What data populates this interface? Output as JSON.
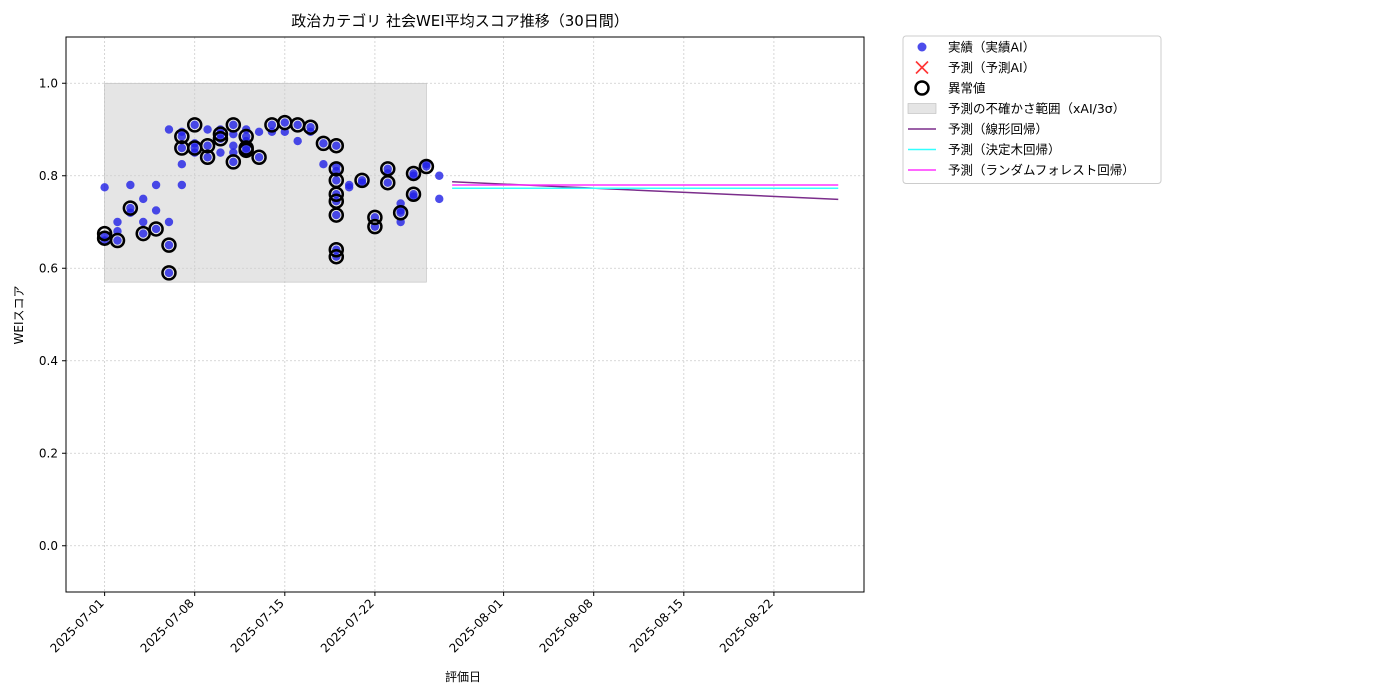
{
  "chart_data": {
    "type": "scatter",
    "title": "政治カテゴリ 社会WEI平均スコア推移（30日間）",
    "xlabel": "評価日",
    "ylabel": "WEIスコア",
    "xlim": [
      "2025-06-28",
      "2025-08-29"
    ],
    "ylim": [
      -0.1,
      1.1
    ],
    "y_ticks": [
      0.0,
      0.2,
      0.4,
      0.6,
      0.8,
      1.0
    ],
    "y_tick_labels": [
      "0.0",
      "0.2",
      "0.4",
      "0.6",
      "0.8",
      "1.0"
    ],
    "x_ticks": [
      "2025-07-01",
      "2025-07-08",
      "2025-07-15",
      "2025-07-22",
      "2025-08-01",
      "2025-08-08",
      "2025-08-15",
      "2025-08-22"
    ],
    "grid": true,
    "legend_position": "outside-right",
    "uncertainty_band": {
      "name": "予測の不確かさ範囲（xAI/3σ）",
      "x_start": "2025-07-01",
      "x_end": "2025-07-26",
      "y_low": 0.57,
      "y_high": 1.0,
      "color": "#cccccc"
    },
    "series": [
      {
        "name": "実績（実績AI）",
        "kind": "scatter",
        "color": "#1f1fe6",
        "points": [
          [
            "2025-07-01",
            0.775
          ],
          [
            "2025-07-01",
            0.66
          ],
          [
            "2025-07-01",
            0.67
          ],
          [
            "2025-07-02",
            0.7
          ],
          [
            "2025-07-02",
            0.66
          ],
          [
            "2025-07-02",
            0.68
          ],
          [
            "2025-07-03",
            0.73
          ],
          [
            "2025-07-03",
            0.78
          ],
          [
            "2025-07-03",
            0.72
          ],
          [
            "2025-07-04",
            0.75
          ],
          [
            "2025-07-04",
            0.7
          ],
          [
            "2025-07-04",
            0.675
          ],
          [
            "2025-07-05",
            0.78
          ],
          [
            "2025-07-05",
            0.725
          ],
          [
            "2025-07-05",
            0.685
          ],
          [
            "2025-07-06",
            0.65
          ],
          [
            "2025-07-06",
            0.59
          ],
          [
            "2025-07-06",
            0.7
          ],
          [
            "2025-07-06",
            0.9
          ],
          [
            "2025-07-07",
            0.78
          ],
          [
            "2025-07-07",
            0.86
          ],
          [
            "2025-07-07",
            0.895
          ],
          [
            "2025-07-07",
            0.885
          ],
          [
            "2025-07-07",
            0.825
          ],
          [
            "2025-07-08",
            0.91
          ],
          [
            "2025-07-08",
            0.86
          ],
          [
            "2025-07-08",
            0.85
          ],
          [
            "2025-07-08",
            0.87
          ],
          [
            "2025-07-09",
            0.9
          ],
          [
            "2025-07-09",
            0.84
          ],
          [
            "2025-07-09",
            0.865
          ],
          [
            "2025-07-10",
            0.9
          ],
          [
            "2025-07-10",
            0.89
          ],
          [
            "2025-07-10",
            0.88
          ],
          [
            "2025-07-10",
            0.85
          ],
          [
            "2025-07-11",
            0.91
          ],
          [
            "2025-07-11",
            0.89
          ],
          [
            "2025-07-11",
            0.83
          ],
          [
            "2025-07-11",
            0.85
          ],
          [
            "2025-07-11",
            0.865
          ],
          [
            "2025-07-12",
            0.875
          ],
          [
            "2025-07-12",
            0.86
          ],
          [
            "2025-07-12",
            0.885
          ],
          [
            "2025-07-12",
            0.9
          ],
          [
            "2025-07-12",
            0.855
          ],
          [
            "2025-07-13",
            0.84
          ],
          [
            "2025-07-13",
            0.895
          ],
          [
            "2025-07-14",
            0.91
          ],
          [
            "2025-07-14",
            0.895
          ],
          [
            "2025-07-15",
            0.915
          ],
          [
            "2025-07-15",
            0.895
          ],
          [
            "2025-07-16",
            0.91
          ],
          [
            "2025-07-16",
            0.875
          ],
          [
            "2025-07-17",
            0.905
          ],
          [
            "2025-07-17",
            0.895
          ],
          [
            "2025-07-18",
            0.87
          ],
          [
            "2025-07-18",
            0.825
          ],
          [
            "2025-07-19",
            0.865
          ],
          [
            "2025-07-19",
            0.82
          ],
          [
            "2025-07-19",
            0.79
          ],
          [
            "2025-07-19",
            0.76
          ],
          [
            "2025-07-19",
            0.745
          ],
          [
            "2025-07-19",
            0.715
          ],
          [
            "2025-07-19",
            0.64
          ],
          [
            "2025-07-19",
            0.625
          ],
          [
            "2025-07-19",
            0.81
          ],
          [
            "2025-07-20",
            0.775
          ],
          [
            "2025-07-20",
            0.78
          ],
          [
            "2025-07-21",
            0.79
          ],
          [
            "2025-07-21",
            0.785
          ],
          [
            "2025-07-22",
            0.71
          ],
          [
            "2025-07-22",
            0.69
          ],
          [
            "2025-07-23",
            0.815
          ],
          [
            "2025-07-23",
            0.805
          ],
          [
            "2025-07-23",
            0.785
          ],
          [
            "2025-07-24",
            0.72
          ],
          [
            "2025-07-24",
            0.7
          ],
          [
            "2025-07-24",
            0.74
          ],
          [
            "2025-07-24",
            0.725
          ],
          [
            "2025-07-25",
            0.8
          ],
          [
            "2025-07-25",
            0.76
          ],
          [
            "2025-07-25",
            0.755
          ],
          [
            "2025-07-25",
            0.805
          ],
          [
            "2025-07-26",
            0.82
          ],
          [
            "2025-07-26",
            0.825
          ],
          [
            "2025-07-27",
            0.8
          ],
          [
            "2025-07-27",
            0.75
          ]
        ]
      },
      {
        "name": "予測（予測AI）",
        "kind": "x-marker",
        "color": "#ff3333",
        "points": []
      },
      {
        "name": "異常値",
        "kind": "ring",
        "color": "#000000",
        "points": [
          [
            "2025-07-01",
            0.665
          ],
          [
            "2025-07-01",
            0.675
          ],
          [
            "2025-07-02",
            0.66
          ],
          [
            "2025-07-03",
            0.73
          ],
          [
            "2025-07-04",
            0.675
          ],
          [
            "2025-07-05",
            0.685
          ],
          [
            "2025-07-06",
            0.65
          ],
          [
            "2025-07-06",
            0.59
          ],
          [
            "2025-07-07",
            0.86
          ],
          [
            "2025-07-07",
            0.885
          ],
          [
            "2025-07-08",
            0.91
          ],
          [
            "2025-07-08",
            0.86
          ],
          [
            "2025-07-09",
            0.865
          ],
          [
            "2025-07-09",
            0.84
          ],
          [
            "2025-07-10",
            0.89
          ],
          [
            "2025-07-10",
            0.88
          ],
          [
            "2025-07-11",
            0.91
          ],
          [
            "2025-07-11",
            0.83
          ],
          [
            "2025-07-12",
            0.86
          ],
          [
            "2025-07-12",
            0.855
          ],
          [
            "2025-07-12",
            0.885
          ],
          [
            "2025-07-13",
            0.84
          ],
          [
            "2025-07-14",
            0.91
          ],
          [
            "2025-07-15",
            0.915
          ],
          [
            "2025-07-16",
            0.91
          ],
          [
            "2025-07-17",
            0.905
          ],
          [
            "2025-07-18",
            0.87
          ],
          [
            "2025-07-19",
            0.865
          ],
          [
            "2025-07-19",
            0.815
          ],
          [
            "2025-07-19",
            0.79
          ],
          [
            "2025-07-19",
            0.76
          ],
          [
            "2025-07-19",
            0.745
          ],
          [
            "2025-07-19",
            0.715
          ],
          [
            "2025-07-19",
            0.64
          ],
          [
            "2025-07-19",
            0.625
          ],
          [
            "2025-07-21",
            0.79
          ],
          [
            "2025-07-22",
            0.71
          ],
          [
            "2025-07-22",
            0.69
          ],
          [
            "2025-07-23",
            0.815
          ],
          [
            "2025-07-23",
            0.785
          ],
          [
            "2025-07-24",
            0.72
          ],
          [
            "2025-07-25",
            0.76
          ],
          [
            "2025-07-25",
            0.805
          ],
          [
            "2025-07-26",
            0.82
          ]
        ]
      },
      {
        "name": "予測（線形回帰）",
        "kind": "line",
        "color": "#7b2d8b",
        "points": [
          [
            "2025-07-28",
            0.787
          ],
          [
            "2025-08-27",
            0.749
          ]
        ]
      },
      {
        "name": "予測（決定木回帰）",
        "kind": "line",
        "color": "#33ffff",
        "points": [
          [
            "2025-07-28",
            0.773
          ],
          [
            "2025-08-27",
            0.773
          ]
        ]
      },
      {
        "name": "予測（ランダムフォレスト回帰）",
        "kind": "line",
        "color": "#ff33ff",
        "points": [
          [
            "2025-07-28",
            0.78
          ],
          [
            "2025-08-27",
            0.78
          ]
        ]
      }
    ]
  }
}
